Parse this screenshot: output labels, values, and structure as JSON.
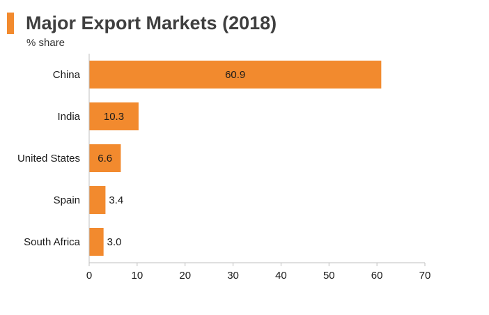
{
  "title": "Major Export Markets (2018)",
  "subtitle": "% share",
  "colors": {
    "accent": "#f28a2e",
    "bar": "#f28a2e",
    "axis": "#bfbfbf",
    "text": "#1a1a1a"
  },
  "chart_data": {
    "type": "bar",
    "orientation": "horizontal",
    "title": "Major Export Markets (2018)",
    "subtitle": "% share",
    "categories": [
      "China",
      "India",
      "United States",
      "Spain",
      "South Africa"
    ],
    "values": [
      60.9,
      10.3,
      6.6,
      3.4,
      3.0
    ],
    "value_labels": [
      "60.9",
      "10.3",
      "6.6",
      "3.4",
      "3.0"
    ],
    "xlim": [
      0,
      70
    ],
    "xticks": [
      0,
      10,
      20,
      30,
      40,
      50,
      60,
      70
    ],
    "xlabel": "",
    "ylabel": "",
    "grid": false,
    "legend": "none"
  }
}
